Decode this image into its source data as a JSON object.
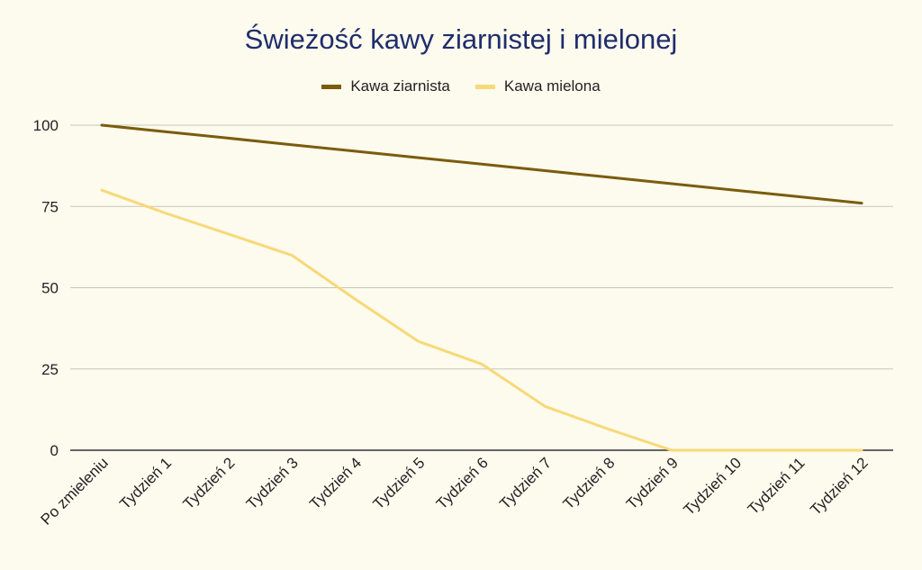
{
  "chart_data": {
    "type": "line",
    "title": "Świeżość kawy ziarnistej i mielonej",
    "xlabel": "",
    "ylabel": "",
    "categories": [
      "Po zmieleniu",
      "Tydzień 1",
      "Tydzień 2",
      "Tydzień 3",
      "Tydzień 4",
      "Tydzień 5",
      "Tydzień 6",
      "Tydzień 7",
      "Tydzień 8",
      "Tydzień 9",
      "Tydzień 10",
      "Tydzień 11",
      "Tydzień 12"
    ],
    "ylim": [
      0,
      100
    ],
    "yticks": [
      "0",
      "25",
      "50",
      "75",
      "100"
    ],
    "grid": true,
    "legend_position": "top",
    "series": [
      {
        "name": "Kawa ziarnista",
        "color": "#7a5c0c",
        "values": [
          100,
          98,
          96,
          94,
          92,
          90,
          88,
          86,
          84,
          82,
          80,
          78,
          76
        ]
      },
      {
        "name": "Kawa mielona",
        "color": "#f7d978",
        "values": [
          80,
          73,
          66.5,
          60,
          46.5,
          33.5,
          26.5,
          13.5,
          6.5,
          0,
          0,
          0,
          0
        ]
      }
    ]
  }
}
